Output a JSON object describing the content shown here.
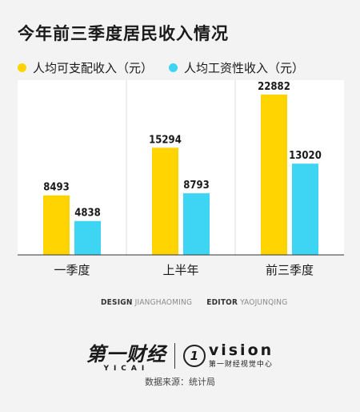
{
  "title": "今年前三季度居民收入情况",
  "legend": [
    {
      "label": "人均可支配收入（元）",
      "color": "#FFD400"
    },
    {
      "label": "人均工资性收入（元）",
      "color": "#3ED5F5"
    }
  ],
  "chart_data": {
    "type": "bar",
    "title": "今年前三季度居民收入情况",
    "categories": [
      "一季度",
      "上半年",
      "前三季度"
    ],
    "series": [
      {
        "name": "人均可支配收入（元）",
        "values": [
          8493,
          15294,
          22882
        ],
        "color": "#FFD400"
      },
      {
        "name": "人均工资性收入（元）",
        "values": [
          4838,
          8793,
          13020
        ],
        "color": "#3ED5F5"
      }
    ],
    "ylim": [
      0,
      25000
    ],
    "grid": false,
    "legend_position": "top-left"
  },
  "credits": {
    "design_label": "DESIGN",
    "designer": "JIANGHAOMING",
    "editor_label": "EDITOR",
    "editor": "YAOJUNQING"
  },
  "logo": {
    "cn_name": "第一财经",
    "cn_pinyin": "YICAI",
    "vision_mark": "1",
    "vision_name": "vision",
    "vision_sub": "第一财经视觉中心"
  },
  "source": "数据来源：统计局"
}
